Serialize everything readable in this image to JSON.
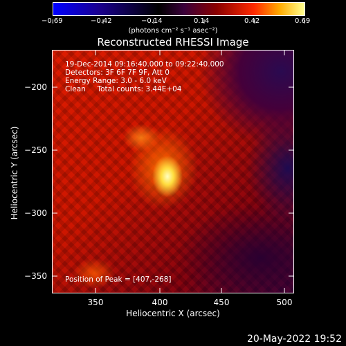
{
  "colorbar": {
    "ticks": [
      "−0.69",
      "−0.42",
      "−0.14",
      "0.14",
      "0.42",
      "0.69"
    ],
    "units": "(photons cm⁻² s⁻¹ asec⁻²)",
    "colors": [
      "#0000ff",
      "#1a0080",
      "#000000",
      "#3a003a",
      "#8a0000",
      "#ff2a00",
      "#ffaa00",
      "#ffff80"
    ]
  },
  "title": "Reconstructed RHESSI Image",
  "info": {
    "time": "19-Dec-2014 09:16:40.000 to 09:22:40.000",
    "detectors": "Detectors: 3F 6F 7F 9F, Att 0",
    "energy": "Energy Range: 3.0 - 6.0 keV",
    "clean": "Clean     Total counts: 3.44E+04",
    "peak": "Position of Peak = [407,-268]"
  },
  "axes": {
    "xlabel": "Heliocentric X (arcsec)",
    "ylabel": "Heliocentric Y (arcsec)",
    "xticks": [
      "350",
      "400",
      "450",
      "500"
    ],
    "yticks": [
      "−200",
      "−250",
      "−300",
      "−350"
    ]
  },
  "footer": {
    "timestamp": "20-May-2022 19:52"
  }
}
